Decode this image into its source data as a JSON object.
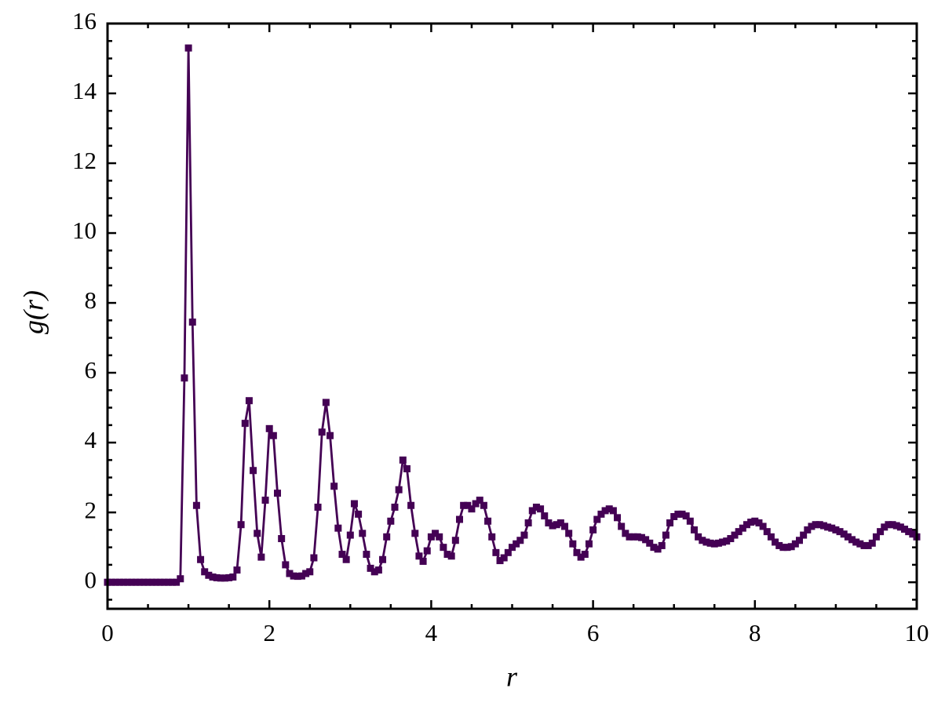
{
  "chart_data": {
    "type": "line",
    "xlabel": "r",
    "ylabel": "g(r)",
    "color": "#440154",
    "xlim": [
      0,
      10
    ],
    "ylim": [
      -0.76,
      16
    ],
    "xticks": [
      0,
      2,
      4,
      6,
      8,
      10
    ],
    "yticks": [
      0,
      2,
      4,
      6,
      8,
      10,
      12,
      14,
      16
    ],
    "xticks_minor": [
      0.5,
      1,
      1.5,
      2.5,
      3,
      3.5,
      4.5,
      5,
      5.5,
      6.5,
      7,
      7.5,
      8.5,
      9,
      9.5
    ],
    "yticks_minor": [
      -0.5,
      0.5,
      1,
      1.5,
      2.5,
      3,
      3.5,
      4.5,
      5,
      5.5,
      6.5,
      7,
      7.5,
      8.5,
      9,
      9.5,
      10.5,
      11,
      11.5,
      12.5,
      13,
      13.5,
      14.5,
      15,
      15.5
    ],
    "x": [
      0,
      0.05,
      0.1,
      0.15,
      0.2,
      0.25,
      0.3,
      0.35,
      0.4,
      0.45,
      0.5,
      0.55,
      0.6,
      0.65,
      0.7,
      0.75,
      0.8,
      0.85,
      0.9,
      0.95,
      1,
      1.05,
      1.1,
      1.15,
      1.2,
      1.25,
      1.3,
      1.35,
      1.4,
      1.45,
      1.5,
      1.55,
      1.6,
      1.65,
      1.7,
      1.75,
      1.8,
      1.85,
      1.9,
      1.95,
      2,
      2.05,
      2.1,
      2.15,
      2.2,
      2.25,
      2.3,
      2.35,
      2.4,
      2.45,
      2.5,
      2.55,
      2.6,
      2.65,
      2.7,
      2.75,
      2.8,
      2.85,
      2.9,
      2.95,
      3,
      3.05,
      3.1,
      3.15,
      3.2,
      3.25,
      3.3,
      3.35,
      3.4,
      3.45,
      3.5,
      3.55,
      3.6,
      3.65,
      3.7,
      3.75,
      3.8,
      3.85,
      3.9,
      3.95,
      4,
      4.05,
      4.1,
      4.15,
      4.2,
      4.25,
      4.3,
      4.35,
      4.4,
      4.45,
      4.5,
      4.55,
      4.6,
      4.65,
      4.7,
      4.75,
      4.8,
      4.85,
      4.9,
      4.95,
      5,
      5.05,
      5.1,
      5.15,
      5.2,
      5.25,
      5.3,
      5.35,
      5.4,
      5.45,
      5.5,
      5.55,
      5.6,
      5.65,
      5.7,
      5.75,
      5.8,
      5.85,
      5.9,
      5.95,
      6,
      6.05,
      6.1,
      6.15,
      6.2,
      6.25,
      6.3,
      6.35,
      6.4,
      6.45,
      6.5,
      6.55,
      6.6,
      6.65,
      6.7,
      6.75,
      6.8,
      6.85,
      6.9,
      6.95,
      7,
      7.05,
      7.1,
      7.15,
      7.2,
      7.25,
      7.3,
      7.35,
      7.4,
      7.45,
      7.5,
      7.55,
      7.6,
      7.65,
      7.7,
      7.75,
      7.8,
      7.85,
      7.9,
      7.95,
      8,
      8.05,
      8.1,
      8.15,
      8.2,
      8.25,
      8.3,
      8.35,
      8.4,
      8.45,
      8.5,
      8.55,
      8.6,
      8.65,
      8.7,
      8.75,
      8.8,
      8.85,
      8.9,
      8.95,
      9,
      9.05,
      9.1,
      9.15,
      9.2,
      9.25,
      9.3,
      9.35,
      9.4,
      9.45,
      9.5,
      9.55,
      9.6,
      9.65,
      9.7,
      9.75,
      9.8,
      9.85,
      9.9,
      9.95,
      10
    ],
    "values": [
      0,
      0,
      0,
      0,
      0,
      0,
      0,
      0,
      0,
      0,
      0,
      0,
      0,
      0,
      0,
      0,
      0,
      0,
      0.1,
      5.85,
      15.3,
      7.45,
      2.2,
      0.65,
      0.3,
      0.2,
      0.15,
      0.13,
      0.12,
      0.12,
      0.13,
      0.15,
      0.35,
      1.65,
      4.55,
      5.2,
      3.2,
      1.4,
      0.72,
      2.35,
      4.4,
      4.2,
      2.55,
      1.25,
      0.5,
      0.25,
      0.18,
      0.17,
      0.18,
      0.25,
      0.3,
      0.7,
      2.15,
      4.3,
      5.15,
      4.2,
      2.75,
      1.55,
      0.8,
      0.65,
      1.35,
      2.25,
      1.95,
      1.4,
      0.8,
      0.4,
      0.3,
      0.35,
      0.65,
      1.3,
      1.75,
      2.15,
      2.65,
      3.5,
      3.25,
      2.2,
      1.4,
      0.75,
      0.6,
      0.9,
      1.3,
      1.4,
      1.3,
      1.0,
      0.8,
      0.75,
      1.2,
      1.8,
      2.2,
      2.2,
      2.1,
      2.25,
      2.35,
      2.2,
      1.75,
      1.3,
      0.85,
      0.62,
      0.7,
      0.85,
      1.0,
      1.1,
      1.2,
      1.35,
      1.7,
      2.05,
      2.15,
      2.1,
      1.9,
      1.7,
      1.62,
      1.65,
      1.7,
      1.6,
      1.4,
      1.1,
      0.85,
      0.72,
      0.8,
      1.1,
      1.5,
      1.8,
      1.95,
      2.05,
      2.1,
      2.05,
      1.85,
      1.6,
      1.4,
      1.3,
      1.3,
      1.3,
      1.28,
      1.22,
      1.12,
      1.0,
      0.95,
      1.05,
      1.35,
      1.7,
      1.88,
      1.95,
      1.95,
      1.9,
      1.75,
      1.5,
      1.3,
      1.2,
      1.15,
      1.12,
      1.1,
      1.12,
      1.15,
      1.18,
      1.25,
      1.35,
      1.45,
      1.55,
      1.65,
      1.72,
      1.75,
      1.7,
      1.6,
      1.45,
      1.3,
      1.15,
      1.05,
      1.0,
      1.0,
      1.02,
      1.1,
      1.2,
      1.35,
      1.5,
      1.6,
      1.65,
      1.65,
      1.62,
      1.58,
      1.55,
      1.5,
      1.45,
      1.38,
      1.3,
      1.22,
      1.15,
      1.1,
      1.05,
      1.05,
      1.12,
      1.3,
      1.45,
      1.58,
      1.65,
      1.65,
      1.62,
      1.58,
      1.52,
      1.45,
      1.38,
      1.3
    ]
  }
}
